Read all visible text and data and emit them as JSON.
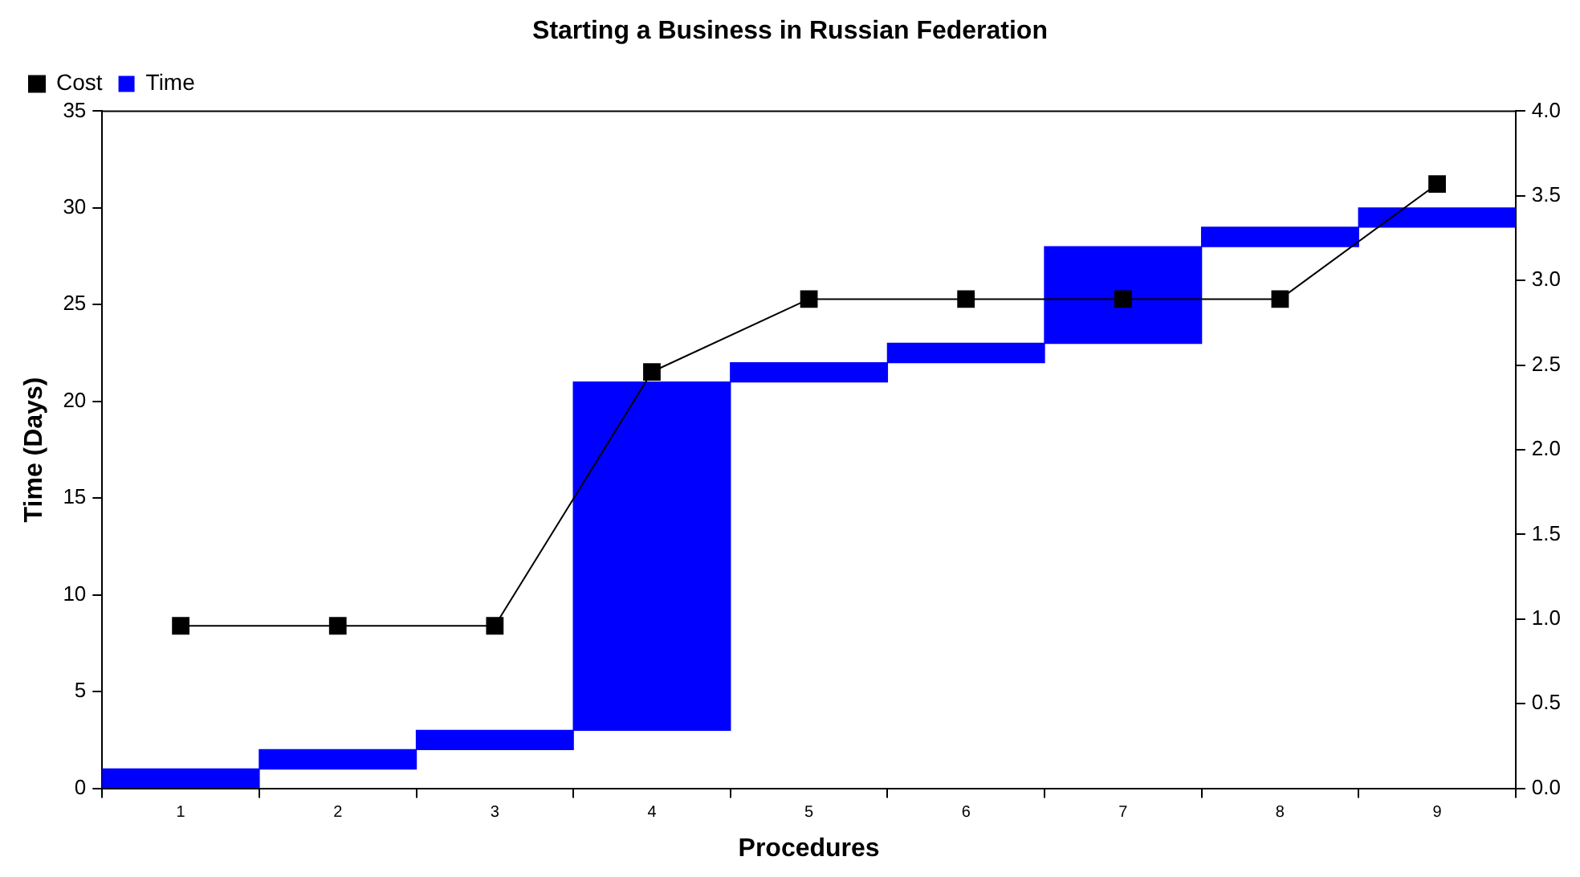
{
  "chart_data": {
    "type": "bar",
    "title": "Starting a Business in Russian Federation",
    "xlabel": "Procedures",
    "ylabel": "Time (Days)",
    "categories": [
      "1",
      "2",
      "3",
      "4",
      "5",
      "6",
      "7",
      "8",
      "9"
    ],
    "series": [
      {
        "name": "Cost",
        "type": "line",
        "axis": "y2",
        "color": "#000000",
        "values": [
          0.96,
          0.96,
          0.96,
          2.46,
          2.89,
          2.89,
          2.89,
          2.89,
          3.57
        ]
      },
      {
        "name": "Time",
        "color": "#0000ff",
        "values": [
          1,
          1,
          1,
          18,
          1,
          1,
          5,
          1,
          1
        ],
        "base": [
          0,
          1,
          2,
          3,
          21,
          22,
          23,
          28,
          29
        ]
      }
    ],
    "ylim": [
      0,
      35
    ],
    "yticks": [
      0,
      5,
      10,
      15,
      20,
      25,
      30,
      35
    ],
    "y2lim": [
      0,
      4
    ],
    "y2ticks": [
      {
        "value": 0,
        "label": "0.0"
      },
      {
        "value": 0.5,
        "label": "0.5"
      },
      {
        "value": 1,
        "label": "1.0"
      },
      {
        "value": 1.5,
        "label": "1.5"
      },
      {
        "value": 2,
        "label": "2.0"
      },
      {
        "value": 2.5,
        "label": "2.5"
      },
      {
        "value": 3,
        "label": "3.0"
      },
      {
        "value": 3.5,
        "label": "3.5"
      },
      {
        "value": 4,
        "label": "4.0"
      }
    ],
    "grid": false,
    "legend": "top left",
    "marker": "square",
    "line_style": "solid"
  }
}
